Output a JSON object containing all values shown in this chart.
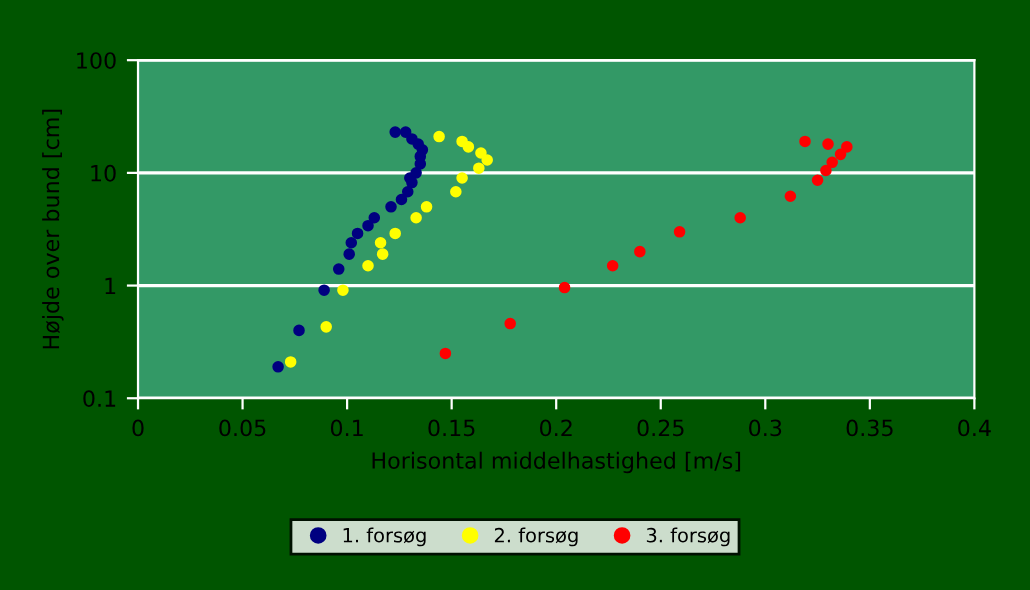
{
  "chart_data": {
    "type": "scatter",
    "xlabel": "Horisontal middelhastighed [m/s]",
    "ylabel": "Højde over bund [cm]",
    "log": "y",
    "xlim": [
      0,
      0.4
    ],
    "xticks": [
      0,
      0.05,
      0.1,
      0.15,
      0.2,
      0.25,
      0.3,
      0.35,
      0.4
    ],
    "ylim": [
      0.1,
      100
    ],
    "yticks": [
      0.1,
      1,
      10,
      100
    ],
    "grid": "y",
    "legend": "bottom",
    "marker": "circle",
    "series": [
      {
        "name": "1. forsøg",
        "color": "#000080",
        "x": [
          0.067,
          0.077,
          0.089,
          0.096,
          0.101,
          0.102,
          0.105,
          0.11,
          0.113,
          0.121,
          0.126,
          0.129,
          0.131,
          0.13,
          0.133,
          0.135,
          0.135,
          0.136,
          0.134,
          0.131,
          0.128,
          0.123
        ],
        "values": [
          0.19,
          0.4,
          0.91,
          1.4,
          1.9,
          2.4,
          2.9,
          3.4,
          4.0,
          5.0,
          5.8,
          6.8,
          8.2,
          9.0,
          10,
          12,
          14,
          16,
          18,
          20,
          23,
          23
        ]
      },
      {
        "name": "2. forsøg",
        "color": "#ffff00",
        "x": [
          0.073,
          0.09,
          0.098,
          0.11,
          0.117,
          0.116,
          0.123,
          0.133,
          0.138,
          0.152,
          0.155,
          0.163,
          0.167,
          0.164,
          0.158,
          0.155,
          0.144
        ],
        "values": [
          0.21,
          0.43,
          0.91,
          1.5,
          1.9,
          2.4,
          2.9,
          4.0,
          5.0,
          6.8,
          9.0,
          11,
          13,
          15,
          17,
          19,
          21
        ]
      },
      {
        "name": "3. forsøg",
        "color": "#ff0000",
        "x": [
          0.147,
          0.178,
          0.204,
          0.227,
          0.24,
          0.259,
          0.288,
          0.312,
          0.325,
          0.329,
          0.332,
          0.336,
          0.339,
          0.33,
          0.319
        ],
        "values": [
          0.25,
          0.46,
          0.96,
          1.5,
          2.0,
          3.0,
          4.0,
          6.2,
          8.6,
          10.5,
          12.4,
          14.6,
          17,
          18,
          19
        ]
      }
    ]
  }
}
